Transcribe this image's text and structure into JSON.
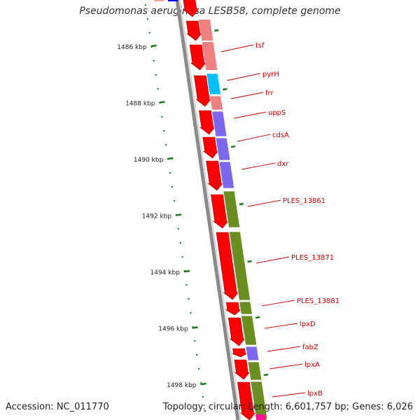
{
  "title": "Pseudomonas aeruginosa LESB58, complete genome",
  "footer": {
    "accession": "Accession: NC_011770",
    "summary": "Topology: circular; Length: 6,601,757 bp; Genes: 6,026"
  },
  "colors": {
    "backbone": "#888888",
    "forward_cds": "#ff0000",
    "ticks": "#1a7a1a",
    "label": "#d40000"
  },
  "scale": {
    "unit": "kbp",
    "ticks": [
      {
        "label": "1486 kbp"
      },
      {
        "label": "1488 kbp"
      },
      {
        "label": "1490 kbp"
      },
      {
        "label": "1492 kbp"
      },
      {
        "label": "1494 kbp"
      },
      {
        "label": "1496 kbp"
      },
      {
        "label": "1498 kbp"
      }
    ]
  },
  "genes": [
    {
      "name": "tsf",
      "color": "#f08080"
    },
    {
      "name": "pyrH",
      "color": "#00bfff"
    },
    {
      "name": "frr",
      "color": "#f08080"
    },
    {
      "name": "uppS",
      "color": "#7b68ee"
    },
    {
      "name": "cdsA",
      "color": "#7b68ee"
    },
    {
      "name": "dxr",
      "color": "#7b68ee"
    },
    {
      "name": "PLES_13861",
      "color": "#6b8e23"
    },
    {
      "name": "PLES_13871",
      "color": "#6b8e23"
    },
    {
      "name": "PLES_13881",
      "color": "#6b8e23"
    },
    {
      "name": "lpxD",
      "color": "#6b8e23"
    },
    {
      "name": "fabZ",
      "color": "#7b68ee"
    },
    {
      "name": "lpxA",
      "color": "#6b8e23"
    },
    {
      "name": "lpxB",
      "color": "#6b8e23"
    }
  ]
}
